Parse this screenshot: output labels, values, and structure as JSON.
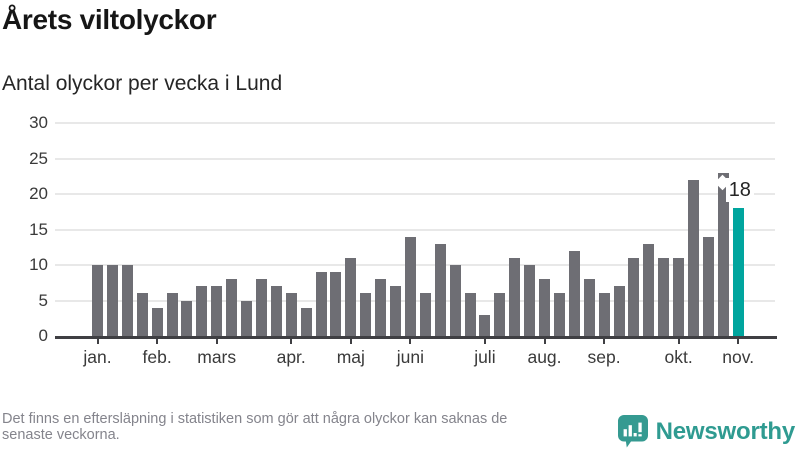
{
  "header": {
    "title": "Årets viltolyckor",
    "subtitle": "Antal olyckor per vecka i Lund"
  },
  "chart_data": {
    "type": "bar",
    "title": "Årets viltolyckor",
    "subtitle": "Antal olyckor per vecka i Lund",
    "ylabel": "Antal olyckor per vecka",
    "xlabel": "",
    "values": [
      10,
      10,
      10,
      6,
      4,
      6,
      5,
      7,
      7,
      8,
      5,
      8,
      7,
      6,
      4,
      9,
      9,
      11,
      6,
      8,
      7,
      14,
      6,
      13,
      10,
      6,
      3,
      6,
      11,
      10,
      8,
      6,
      12,
      8,
      6,
      7,
      11,
      13,
      11,
      11,
      22,
      14,
      23,
      18
    ],
    "months": [
      {
        "label": "jan.",
        "start_week": 0
      },
      {
        "label": "feb.",
        "start_week": 4
      },
      {
        "label": "mars",
        "start_week": 8
      },
      {
        "label": "apr.",
        "start_week": 13
      },
      {
        "label": "maj",
        "start_week": 17
      },
      {
        "label": "juni",
        "start_week": 21
      },
      {
        "label": "juli",
        "start_week": 26
      },
      {
        "label": "aug.",
        "start_week": 30
      },
      {
        "label": "sep.",
        "start_week": 34
      },
      {
        "label": "okt.",
        "start_week": 39
      },
      {
        "label": "nov.",
        "start_week": 43
      }
    ],
    "highlight_index": 43,
    "highlight_value_label": "18",
    "ylim": [
      0,
      30
    ],
    "yticks": [
      0,
      5,
      10,
      15,
      20,
      25,
      30
    ],
    "grid": true,
    "legend": "none",
    "bar_color": "#6e6e74",
    "highlight_color": "#00a59e",
    "axis_color": "#3f3f43",
    "grid_color": "#e8e8e8"
  },
  "footer": {
    "note_line1": "Det finns en eftersläpning i statistiken som gör att några olyckor kan saknas de",
    "note_line2": "senaste veckorna.",
    "brand_name": "Newsworthy",
    "brand_color": "#2f9b91",
    "logo_icon": "speech-bubble-bar-chart-icon"
  }
}
